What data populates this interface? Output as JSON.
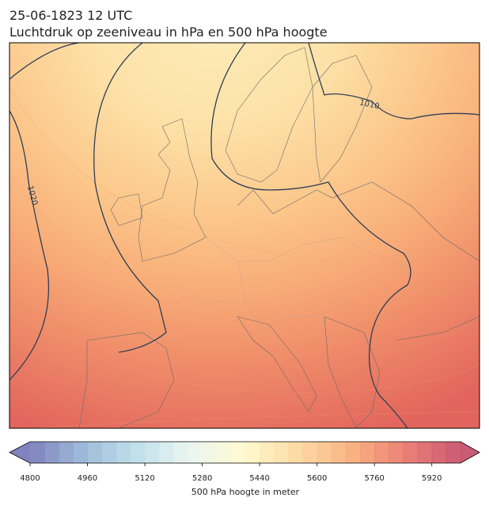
{
  "title": "25-06-1823 12 UTC",
  "subtitle": "Luchtdruk op zeeniveau in hPa en 500 hPa hoogte",
  "contour_labels": [
    "1010",
    "1020"
  ],
  "colorbar": {
    "vmin": 4800,
    "vmax": 6000,
    "step": 40,
    "ticks": [
      4800,
      4960,
      5120,
      5280,
      5440,
      5600,
      5760,
      5920
    ],
    "label": "500 hPa hoogte in meter",
    "colors": [
      "#6a6db3",
      "#8fb0d4",
      "#b7dbe9",
      "#e9f5ee",
      "#fff8c6",
      "#fdd394",
      "#f6a36c",
      "#e7695d",
      "#c13e5c"
    ]
  }
}
